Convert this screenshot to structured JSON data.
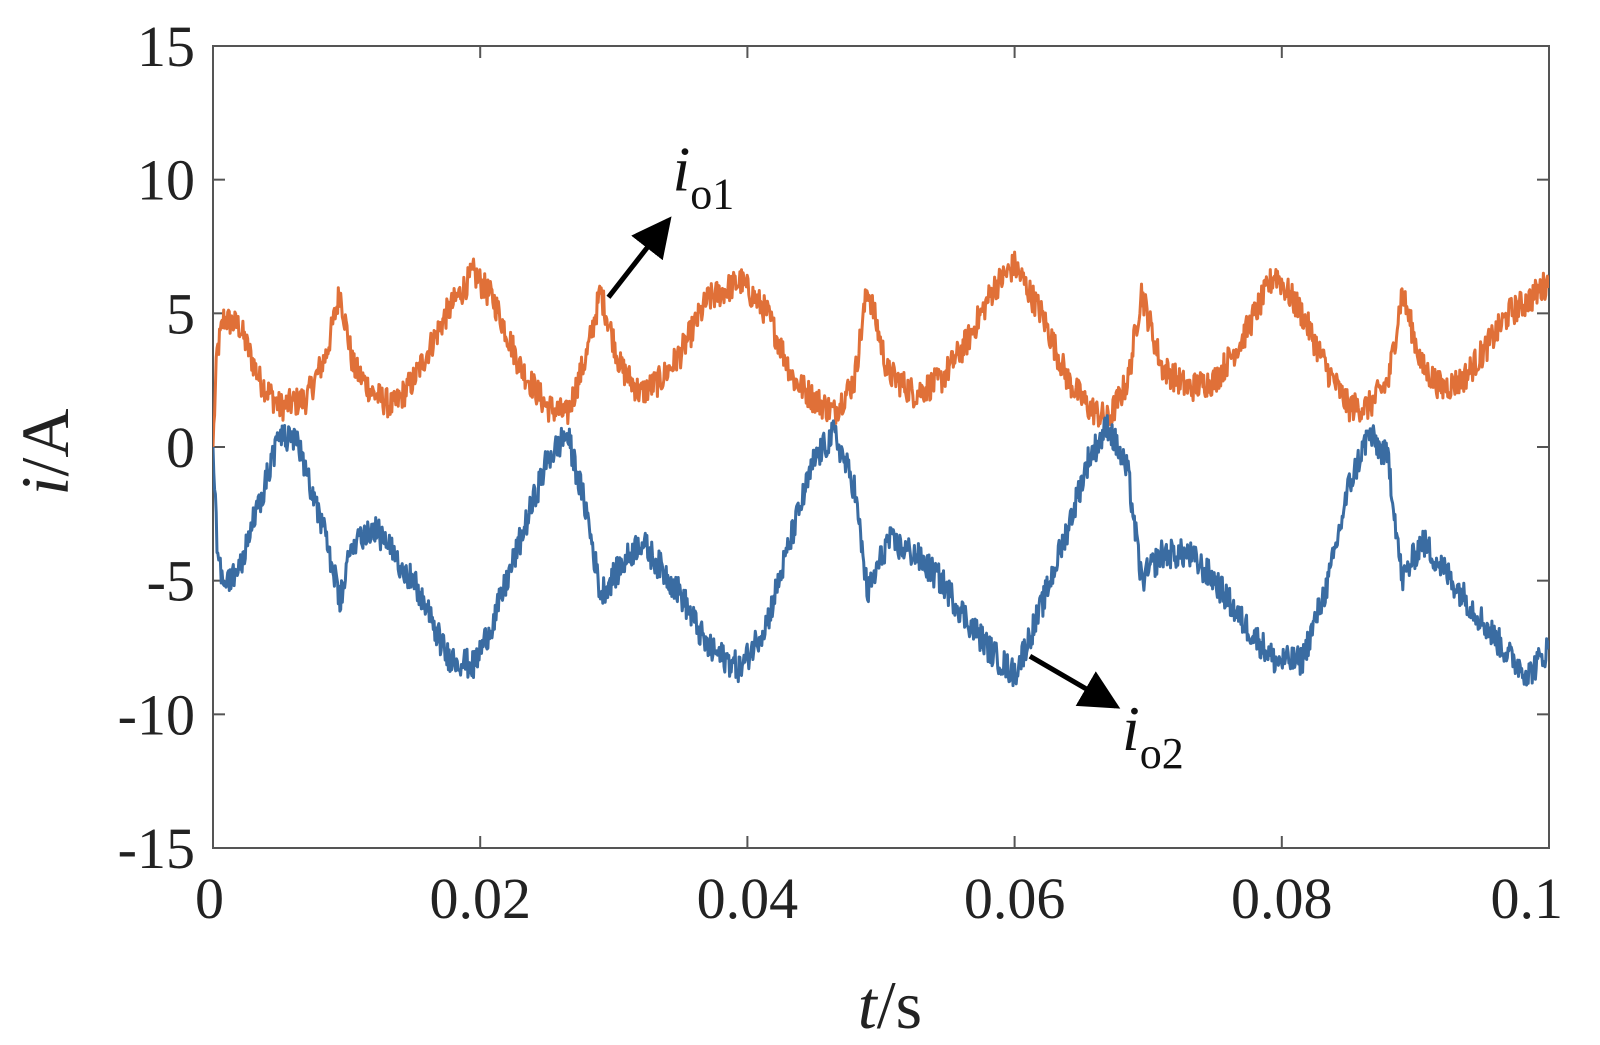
{
  "chart_data": {
    "type": "line",
    "title": "",
    "xlabel": {
      "var": "t",
      "unit": "/s"
    },
    "ylabel": {
      "var": "i",
      "unit": "/A"
    },
    "xlim": [
      0,
      0.1
    ],
    "ylim": [
      -15,
      15
    ],
    "xticks": [
      0,
      0.02,
      0.04,
      0.06,
      0.08,
      0.1
    ],
    "xtick_labels": [
      "0",
      "0.02",
      "0.04",
      "0.06",
      "0.08",
      "0.1"
    ],
    "yticks": [
      15,
      10,
      5,
      0,
      -5,
      -10,
      -15
    ],
    "ytick_labels": [
      "15",
      "10",
      "5",
      "0",
      "-5",
      "-10",
      "-15"
    ],
    "grid": false,
    "series": [
      {
        "name": "io1",
        "color": "#E07038",
        "x": [
          0,
          0.0003,
          0.0008,
          0.002,
          0.0035,
          0.005,
          0.007,
          0.0085,
          0.0095,
          0.0105,
          0.012,
          0.0135,
          0.015,
          0.0175,
          0.0195,
          0.021,
          0.023,
          0.025,
          0.0265,
          0.028,
          0.029,
          0.0305,
          0.032,
          0.0335,
          0.035,
          0.037,
          0.0395,
          0.0415,
          0.0435,
          0.045,
          0.0465,
          0.048,
          0.049,
          0.0505,
          0.0525,
          0.0545,
          0.0565,
          0.0585,
          0.06,
          0.062,
          0.064,
          0.0655,
          0.067,
          0.0685,
          0.0695,
          0.071,
          0.073,
          0.075,
          0.077,
          0.0795,
          0.0815,
          0.0835,
          0.085,
          0.0865,
          0.088,
          0.089,
          0.0905,
          0.092,
          0.0935,
          0.095,
          0.097,
          0.0985,
          0.1
        ],
        "y": [
          0,
          3.5,
          4.8,
          4.5,
          2.5,
          1.5,
          1.8,
          3.5,
          5.8,
          3.0,
          2.0,
          1.5,
          2.5,
          5.0,
          6.5,
          5.5,
          3.0,
          1.5,
          1.2,
          3.5,
          5.8,
          3.0,
          2.0,
          2.5,
          3.5,
          5.5,
          6.2,
          5.0,
          2.5,
          1.8,
          1.3,
          2.5,
          6.0,
          2.8,
          2.0,
          2.5,
          4.0,
          6.0,
          6.8,
          5.0,
          2.5,
          1.5,
          1.0,
          2.5,
          5.8,
          3.0,
          2.2,
          2.5,
          4.0,
          6.5,
          5.0,
          2.8,
          1.5,
          1.5,
          2.5,
          5.8,
          3.0,
          2.2,
          2.5,
          3.5,
          5.0,
          5.5,
          6.2
        ]
      },
      {
        "name": "io2",
        "color": "#3A6CA2",
        "x": [
          0,
          0.0003,
          0.0008,
          0.002,
          0.0035,
          0.005,
          0.0065,
          0.0085,
          0.0095,
          0.0105,
          0.012,
          0.0135,
          0.015,
          0.0175,
          0.0195,
          0.021,
          0.023,
          0.025,
          0.0265,
          0.028,
          0.029,
          0.0305,
          0.032,
          0.0335,
          0.035,
          0.037,
          0.0395,
          0.0415,
          0.0435,
          0.045,
          0.0465,
          0.048,
          0.049,
          0.0505,
          0.0525,
          0.0545,
          0.0565,
          0.0585,
          0.06,
          0.062,
          0.064,
          0.0655,
          0.067,
          0.0685,
          0.0695,
          0.071,
          0.073,
          0.075,
          0.077,
          0.0795,
          0.0815,
          0.0835,
          0.085,
          0.0865,
          0.088,
          0.089,
          0.0905,
          0.092,
          0.0935,
          0.095,
          0.097,
          0.0985,
          0.1
        ],
        "y": [
          0,
          -3.5,
          -5.2,
          -4.5,
          -2.0,
          0.5,
          0.0,
          -3.5,
          -5.8,
          -3.5,
          -3.0,
          -4.0,
          -5.0,
          -7.8,
          -8.2,
          -6.5,
          -3.5,
          -0.5,
          0.5,
          -2.5,
          -5.5,
          -4.5,
          -3.5,
          -4.5,
          -5.5,
          -7.5,
          -8.3,
          -6.5,
          -3.0,
          -0.5,
          0.5,
          -1.5,
          -5.5,
          -3.5,
          -4.0,
          -5.0,
          -6.5,
          -7.8,
          -8.5,
          -6.0,
          -3.0,
          -0.5,
          0.8,
          -1.0,
          -5.0,
          -4.0,
          -4.0,
          -5.0,
          -6.5,
          -8.0,
          -8.0,
          -5.0,
          -1.5,
          0.5,
          -0.5,
          -5.0,
          -3.5,
          -4.5,
          -5.5,
          -6.5,
          -7.8,
          -8.5,
          -7.5
        ]
      }
    ],
    "annotations": [
      {
        "series": "io1",
        "var": "i",
        "sub": "o1",
        "at_x": 0.0296,
        "at_y": 5.3
      },
      {
        "series": "io2",
        "var": "i",
        "sub": "o2",
        "at_x": 0.0607,
        "at_y": -7.6
      }
    ]
  }
}
